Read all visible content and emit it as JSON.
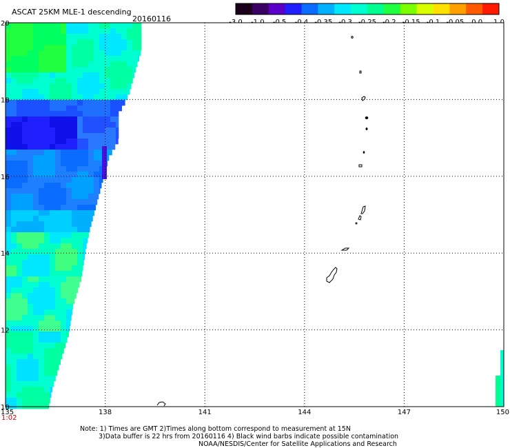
{
  "header": {
    "title": "ASCAT 25KM MLE-1 descending",
    "date": "20160116"
  },
  "colorbar": {
    "colors": [
      "#1a0018",
      "#3a0064",
      "#5a00c8",
      "#2020ff",
      "#0a6cff",
      "#00b0ff",
      "#00e8ff",
      "#00ffd0",
      "#00ff90",
      "#20ff40",
      "#7aff00",
      "#d8ff00",
      "#ffe000",
      "#ffa000",
      "#ff5a00",
      "#ff1a00"
    ],
    "labels": [
      "-3.0",
      "-1.0",
      "-0.5",
      "-0.4",
      "-0.35",
      "-0.3",
      "-0.25",
      "-0.2",
      "-0.15",
      "-0.1",
      "-0.05",
      "0.0",
      "1.0"
    ]
  },
  "map": {
    "lon_range": [
      135,
      150
    ],
    "lat_range": [
      10,
      20
    ],
    "lon_ticks": [
      "135",
      "138",
      "141",
      "144",
      "147",
      "150"
    ],
    "lat_ticks": [
      "20",
      "18",
      "16",
      "14",
      "12",
      "10"
    ],
    "time_label": "1:02",
    "time_label_color": "#cc0000",
    "grid": "dotted"
  },
  "notes": [
    "Note: 1) Times are GMT 2)Times along bottom correspond to measurement at 15N",
    "3)Data buffer is 22 hrs from 20160116 4) Black wind barbs indicate possible contamination",
    "NOAA/NESDIS/Center for Satellite Applications and Research"
  ]
}
